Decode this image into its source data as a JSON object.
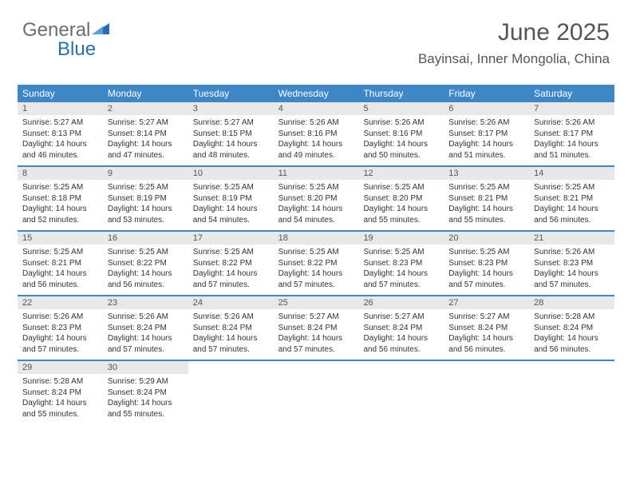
{
  "logo": {
    "text_gray": "General",
    "text_blue": "Blue"
  },
  "header": {
    "month_title": "June 2025",
    "location": "Bayinsai, Inner Mongolia, China"
  },
  "colors": {
    "accent": "#3d87c7",
    "gray_bar": "#e8e8e8",
    "text_dark": "#333333",
    "text_mid": "#555555",
    "logo_gray": "#6d6d6d",
    "logo_blue": "#2a6db0",
    "background": "#ffffff"
  },
  "weekdays": [
    "Sunday",
    "Monday",
    "Tuesday",
    "Wednesday",
    "Thursday",
    "Friday",
    "Saturday"
  ],
  "days": [
    {
      "n": 1,
      "sunrise": "5:27 AM",
      "sunset": "8:13 PM",
      "daylight": "14 hours and 46 minutes."
    },
    {
      "n": 2,
      "sunrise": "5:27 AM",
      "sunset": "8:14 PM",
      "daylight": "14 hours and 47 minutes."
    },
    {
      "n": 3,
      "sunrise": "5:27 AM",
      "sunset": "8:15 PM",
      "daylight": "14 hours and 48 minutes."
    },
    {
      "n": 4,
      "sunrise": "5:26 AM",
      "sunset": "8:16 PM",
      "daylight": "14 hours and 49 minutes."
    },
    {
      "n": 5,
      "sunrise": "5:26 AM",
      "sunset": "8:16 PM",
      "daylight": "14 hours and 50 minutes."
    },
    {
      "n": 6,
      "sunrise": "5:26 AM",
      "sunset": "8:17 PM",
      "daylight": "14 hours and 51 minutes."
    },
    {
      "n": 7,
      "sunrise": "5:26 AM",
      "sunset": "8:17 PM",
      "daylight": "14 hours and 51 minutes."
    },
    {
      "n": 8,
      "sunrise": "5:25 AM",
      "sunset": "8:18 PM",
      "daylight": "14 hours and 52 minutes."
    },
    {
      "n": 9,
      "sunrise": "5:25 AM",
      "sunset": "8:19 PM",
      "daylight": "14 hours and 53 minutes."
    },
    {
      "n": 10,
      "sunrise": "5:25 AM",
      "sunset": "8:19 PM",
      "daylight": "14 hours and 54 minutes."
    },
    {
      "n": 11,
      "sunrise": "5:25 AM",
      "sunset": "8:20 PM",
      "daylight": "14 hours and 54 minutes."
    },
    {
      "n": 12,
      "sunrise": "5:25 AM",
      "sunset": "8:20 PM",
      "daylight": "14 hours and 55 minutes."
    },
    {
      "n": 13,
      "sunrise": "5:25 AM",
      "sunset": "8:21 PM",
      "daylight": "14 hours and 55 minutes."
    },
    {
      "n": 14,
      "sunrise": "5:25 AM",
      "sunset": "8:21 PM",
      "daylight": "14 hours and 56 minutes."
    },
    {
      "n": 15,
      "sunrise": "5:25 AM",
      "sunset": "8:21 PM",
      "daylight": "14 hours and 56 minutes."
    },
    {
      "n": 16,
      "sunrise": "5:25 AM",
      "sunset": "8:22 PM",
      "daylight": "14 hours and 56 minutes."
    },
    {
      "n": 17,
      "sunrise": "5:25 AM",
      "sunset": "8:22 PM",
      "daylight": "14 hours and 57 minutes."
    },
    {
      "n": 18,
      "sunrise": "5:25 AM",
      "sunset": "8:22 PM",
      "daylight": "14 hours and 57 minutes."
    },
    {
      "n": 19,
      "sunrise": "5:25 AM",
      "sunset": "8:23 PM",
      "daylight": "14 hours and 57 minutes."
    },
    {
      "n": 20,
      "sunrise": "5:25 AM",
      "sunset": "8:23 PM",
      "daylight": "14 hours and 57 minutes."
    },
    {
      "n": 21,
      "sunrise": "5:26 AM",
      "sunset": "8:23 PM",
      "daylight": "14 hours and 57 minutes."
    },
    {
      "n": 22,
      "sunrise": "5:26 AM",
      "sunset": "8:23 PM",
      "daylight": "14 hours and 57 minutes."
    },
    {
      "n": 23,
      "sunrise": "5:26 AM",
      "sunset": "8:24 PM",
      "daylight": "14 hours and 57 minutes."
    },
    {
      "n": 24,
      "sunrise": "5:26 AM",
      "sunset": "8:24 PM",
      "daylight": "14 hours and 57 minutes."
    },
    {
      "n": 25,
      "sunrise": "5:27 AM",
      "sunset": "8:24 PM",
      "daylight": "14 hours and 57 minutes."
    },
    {
      "n": 26,
      "sunrise": "5:27 AM",
      "sunset": "8:24 PM",
      "daylight": "14 hours and 56 minutes."
    },
    {
      "n": 27,
      "sunrise": "5:27 AM",
      "sunset": "8:24 PM",
      "daylight": "14 hours and 56 minutes."
    },
    {
      "n": 28,
      "sunrise": "5:28 AM",
      "sunset": "8:24 PM",
      "daylight": "14 hours and 56 minutes."
    },
    {
      "n": 29,
      "sunrise": "5:28 AM",
      "sunset": "8:24 PM",
      "daylight": "14 hours and 55 minutes."
    },
    {
      "n": 30,
      "sunrise": "5:29 AM",
      "sunset": "8:24 PM",
      "daylight": "14 hours and 55 minutes."
    }
  ],
  "labels": {
    "sunrise_prefix": "Sunrise: ",
    "sunset_prefix": "Sunset: ",
    "daylight_prefix": "Daylight: "
  },
  "layout": {
    "start_weekday": 0,
    "days_in_month": 30,
    "columns": 7
  }
}
